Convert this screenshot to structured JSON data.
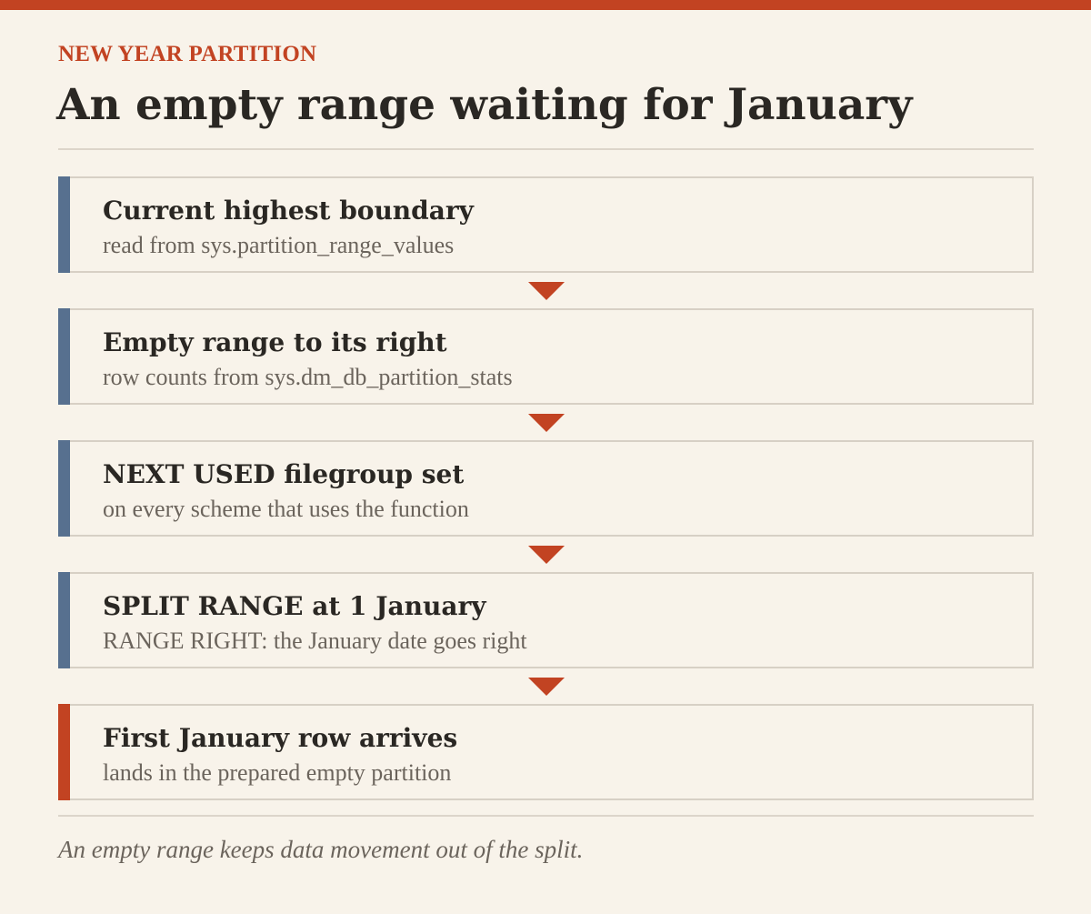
{
  "kicker": "NEW YEAR PARTITION",
  "title": "An empty range waiting for January",
  "steps": [
    {
      "title": "Current highest boundary",
      "subtitle": "read from sys.partition_range_values"
    },
    {
      "title": "Empty range to its right",
      "subtitle": "row counts from sys.dm_db_partition_stats"
    },
    {
      "title": "NEXT USED filegroup set",
      "subtitle": "on every scheme that uses the function"
    },
    {
      "title": "SPLIT RANGE at 1 January",
      "subtitle": "RANGE RIGHT: the January date goes right"
    },
    {
      "title": "First January row arrives",
      "subtitle": "lands in the prepared empty partition"
    }
  ],
  "footnote": "An empty range keeps data movement out of the split.",
  "colors": {
    "accent": "#c24322",
    "step_marker": "#57708f",
    "final_marker": "#c24322",
    "background": "#f8f3ea"
  },
  "icons": {
    "connector": "down-triangle"
  }
}
